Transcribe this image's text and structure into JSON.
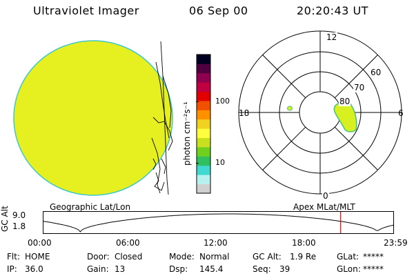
{
  "header": {
    "title": "Ultraviolet Imager",
    "date": "06 Sep 00",
    "time": "20:20:43 UT"
  },
  "colorbar": {
    "unit_label": "photon cm⁻²s⁻¹",
    "tick_labels": [
      "100",
      "10"
    ],
    "colors": [
      "#d0d0d0",
      "#b8f0f0",
      "#40d8d0",
      "#30c060",
      "#70d020",
      "#c8e020",
      "#ffff40",
      "#f0d020",
      "#ff9000",
      "#f05000",
      "#e00000",
      "#c00040",
      "#900050",
      "#500040",
      "#000020"
    ]
  },
  "polar_plot": {
    "hour_labels": [
      "12",
      "18",
      "6",
      "0"
    ],
    "lat_labels": [
      "60",
      "70",
      "80"
    ]
  },
  "coord_labels": {
    "left": "Geographic Lat/Lon",
    "right": "Apex  MLat/MLT"
  },
  "altitude_plot": {
    "axis_title": "GC Alt",
    "y_ticks": [
      "9.0",
      "1.8"
    ],
    "x_ticks": [
      "00:00",
      "06:00",
      "12:00",
      "18:00",
      "23:59"
    ],
    "marker_time": "20:20"
  },
  "status": {
    "flt_label": "Flt:",
    "flt_value": "HOME",
    "ip_label": "IP:",
    "ip_value": "36.0",
    "door_label": "Door:",
    "door_value": "Closed",
    "gain_label": "Gain:",
    "gain_value": "13",
    "mode_label": "Mode:",
    "mode_value": "Normal",
    "dsp_label": "Dsp:",
    "dsp_value": "145.4",
    "gcalt_label": "GC Alt:",
    "gcalt_value": "1.9 Re",
    "seq_label": "Seq:",
    "seq_value": "39",
    "glat_label": "GLat:",
    "glat_value": "*****",
    "glon_label": "GLon:",
    "glon_value": "*****"
  },
  "colors": {
    "image_fill": "#e6f020",
    "image_rim": "#40c8c8",
    "aurora_fill": "#d8f020",
    "aurora_edge": "#40c080",
    "marker_line": "#e00000"
  }
}
